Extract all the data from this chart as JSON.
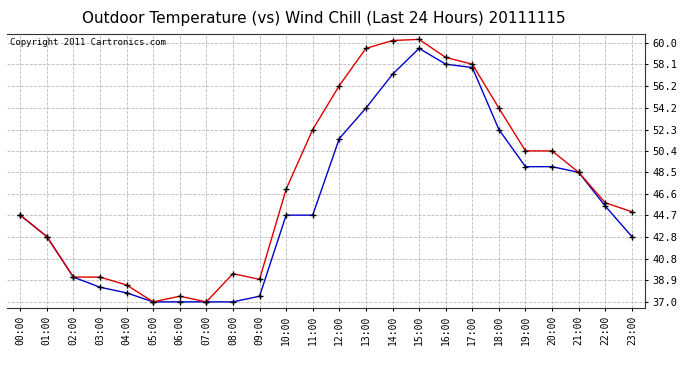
{
  "title": "Outdoor Temperature (vs) Wind Chill (Last 24 Hours) 20111115",
  "copyright_text": "Copyright 2011 Cartronics.com",
  "x_labels": [
    "00:00",
    "01:00",
    "02:00",
    "03:00",
    "04:00",
    "05:00",
    "06:00",
    "07:00",
    "08:00",
    "09:00",
    "10:00",
    "11:00",
    "12:00",
    "13:00",
    "14:00",
    "15:00",
    "16:00",
    "17:00",
    "18:00",
    "19:00",
    "20:00",
    "21:00",
    "22:00",
    "23:00"
  ],
  "y_ticks": [
    37.0,
    38.9,
    40.8,
    42.8,
    44.7,
    46.6,
    48.5,
    50.4,
    52.3,
    54.2,
    56.2,
    58.1,
    60.0
  ],
  "ylim": [
    36.5,
    60.8
  ],
  "temp_red": [
    44.7,
    42.8,
    39.2,
    39.2,
    38.5,
    37.0,
    37.5,
    37.0,
    39.5,
    39.0,
    47.0,
    52.3,
    56.2,
    59.5,
    60.2,
    60.3,
    58.7,
    58.1,
    54.2,
    50.4,
    50.4,
    48.5,
    45.8,
    45.0
  ],
  "wind_chill_blue": [
    44.7,
    42.8,
    39.2,
    38.3,
    37.8,
    37.0,
    37.0,
    37.0,
    37.0,
    37.5,
    44.7,
    44.7,
    51.5,
    54.2,
    57.2,
    59.5,
    58.1,
    57.8,
    52.3,
    49.0,
    49.0,
    48.5,
    45.5,
    42.8
  ],
  "line_color_red": "#dd0000",
  "line_color_blue": "#0000cc",
  "background_color": "#ffffff",
  "plot_bg_color": "#ffffff",
  "grid_color": "#bbbbbb",
  "title_fontsize": 11,
  "copyright_fontsize": 6.5,
  "tick_fontsize": 7,
  "ytick_fontsize": 7.5
}
